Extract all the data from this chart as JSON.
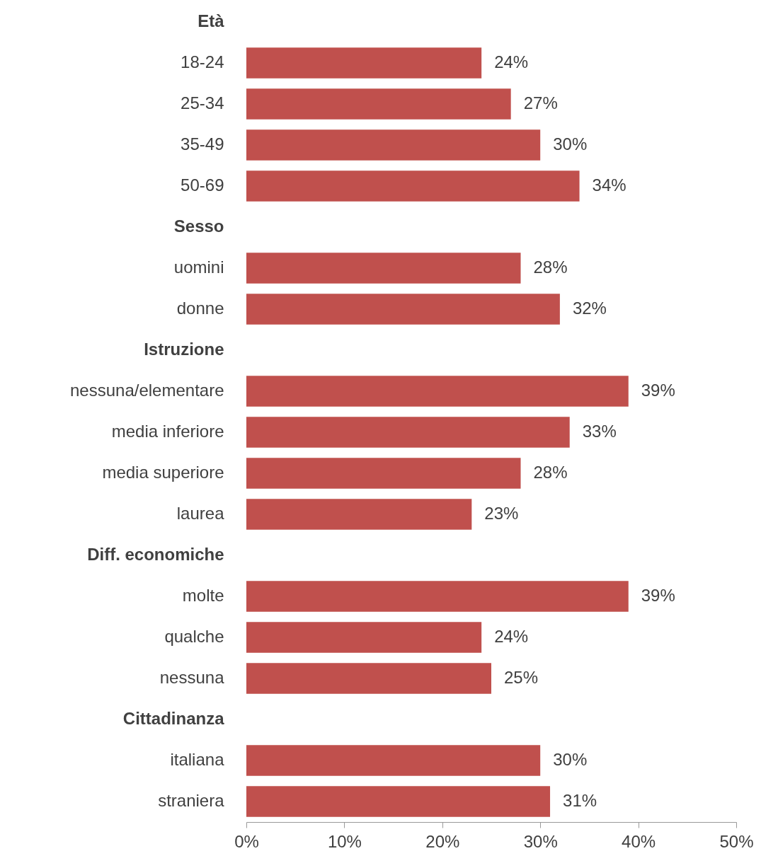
{
  "chart_data": {
    "type": "bar",
    "orientation": "horizontal",
    "categories": [
      "Età",
      "18-24",
      "25-34",
      "35-49",
      "50-69",
      "Sesso",
      "uomini",
      "donne",
      "Istruzione",
      "nessuna/elementare",
      "media inferiore",
      "media superiore",
      "laurea",
      "Diff. economiche",
      "molte",
      "qualche",
      "nessuna",
      "Cittadinanza",
      "italiana",
      "straniera"
    ],
    "series": [
      {
        "color": "#c0504d",
        "values": [
          null,
          24,
          27,
          30,
          34,
          null,
          28,
          32,
          null,
          39,
          33,
          28,
          23,
          null,
          39,
          24,
          25,
          null,
          30,
          31
        ],
        "value_labels": [
          null,
          "24%",
          "27%",
          "30%",
          "34%",
          null,
          "28%",
          "32%",
          null,
          "39%",
          "33%",
          "28%",
          "23%",
          null,
          "39%",
          "24%",
          "25%",
          null,
          "30%",
          "31%"
        ]
      }
    ],
    "xlim": [
      0,
      50
    ],
    "xticks": [
      {
        "value": 0,
        "label": "0%"
      },
      {
        "value": 10,
        "label": "10%"
      },
      {
        "value": 20,
        "label": "20%"
      },
      {
        "value": 30,
        "label": "30%"
      },
      {
        "value": 40,
        "label": "40%"
      },
      {
        "value": 50,
        "label": "50%"
      }
    ],
    "grid": false
  }
}
